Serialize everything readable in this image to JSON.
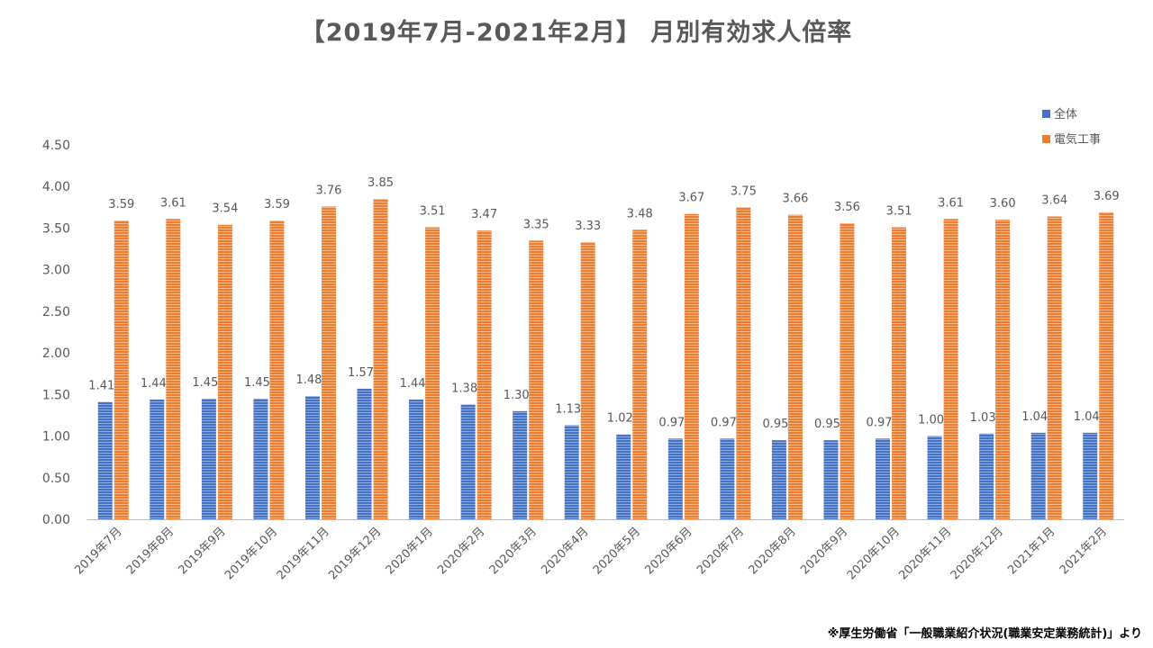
{
  "chart_data": {
    "type": "bar",
    "title": "【2019年7月-2021年2月】 月別有効求人倍率",
    "xlabel": "",
    "ylabel": "",
    "ylim": [
      0,
      4.5
    ],
    "yticks": [
      "0.00",
      "0.50",
      "1.00",
      "1.50",
      "2.00",
      "2.50",
      "3.00",
      "3.50",
      "4.00",
      "4.50"
    ],
    "grid": false,
    "legend_position": "top-right",
    "categories": [
      "2019年7月",
      "2019年8月",
      "2019年9月",
      "2019年10月",
      "2019年11月",
      "2019年12月",
      "2020年1月",
      "2020年2月",
      "2020年3月",
      "2020年4月",
      "2020年5月",
      "2020年6月",
      "2020年7月",
      "2020年8月",
      "2020年9月",
      "2020年10月",
      "2020年11月",
      "2020年12月",
      "2021年1月",
      "2021年2月"
    ],
    "series": [
      {
        "name": "全体",
        "color": "#4472C4",
        "values": [
          1.41,
          1.44,
          1.45,
          1.45,
          1.48,
          1.57,
          1.44,
          1.38,
          1.3,
          1.13,
          1.02,
          0.97,
          0.97,
          0.95,
          0.95,
          0.97,
          1.0,
          1.03,
          1.04,
          1.04
        ],
        "labels": [
          "1.41",
          "1.44",
          "1.45",
          "1.45",
          "1.48",
          "1.57",
          "1.44",
          "1.38",
          "1.30",
          "1.13",
          "1.02",
          "0.97",
          "0.97",
          "0.95",
          "0.95",
          "0.97",
          "1.00",
          "1.03",
          "1.04",
          "1.04"
        ]
      },
      {
        "name": "電気工事",
        "color": "#ED7D31",
        "values": [
          3.59,
          3.61,
          3.54,
          3.59,
          3.76,
          3.85,
          3.51,
          3.47,
          3.35,
          3.33,
          3.48,
          3.67,
          3.75,
          3.66,
          3.56,
          3.51,
          3.61,
          3.6,
          3.64,
          3.69
        ],
        "labels": [
          "3.59",
          "3.61",
          "3.54",
          "3.59",
          "3.76",
          "3.85",
          "3.51",
          "3.47",
          "3.35",
          "3.33",
          "3.48",
          "3.67",
          "3.75",
          "3.66",
          "3.56",
          "3.51",
          "3.61",
          "3.60",
          "3.64",
          "3.69"
        ]
      }
    ]
  },
  "source_note": "※厚生労働省「一般職業紹介状況(職業安定業務統計)」より"
}
